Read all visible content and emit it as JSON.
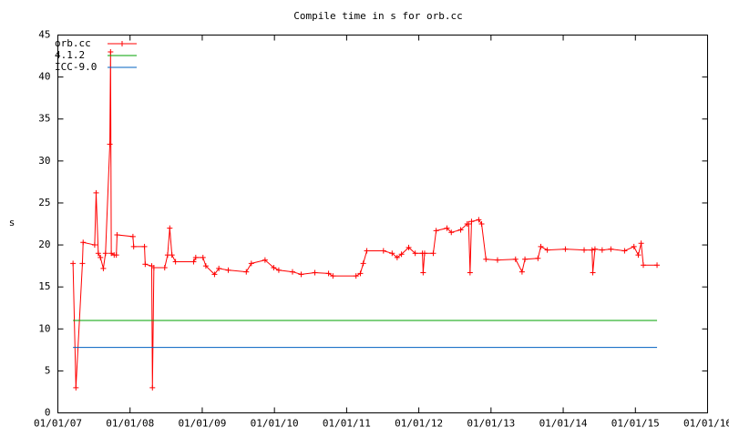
{
  "chart_data": {
    "type": "line",
    "title": "Compile time in s for orb.cc",
    "y_label": "s",
    "xlim": [
      2007,
      2016
    ],
    "xticks": [
      {
        "value": 2007,
        "label": "01/01/07"
      },
      {
        "value": 2008,
        "label": "01/01/08"
      },
      {
        "value": 2009,
        "label": "01/01/09"
      },
      {
        "value": 2010,
        "label": "01/01/10"
      },
      {
        "value": 2011,
        "label": "01/01/11"
      },
      {
        "value": 2012,
        "label": "01/01/12"
      },
      {
        "value": 2013,
        "label": "01/01/13"
      },
      {
        "value": 2014,
        "label": "01/01/14"
      },
      {
        "value": 2015,
        "label": "01/01/15"
      },
      {
        "value": 2016,
        "label": "01/01/16"
      }
    ],
    "ylim": [
      0,
      45
    ],
    "yticks": [
      0,
      5,
      10,
      15,
      20,
      25,
      30,
      35,
      40,
      45
    ],
    "legend": "top-left",
    "series": [
      {
        "name": "orb.cc",
        "color": "#ff0000",
        "marker": "plus",
        "x": [
          2007.21,
          2007.25,
          2007.34,
          2007.35,
          2007.51,
          2007.53,
          2007.56,
          2007.59,
          2007.63,
          2007.66,
          2007.72,
          2007.73,
          2007.74,
          2007.78,
          2007.81,
          2007.82,
          2008.04,
          2008.05,
          2008.2,
          2008.21,
          2008.3,
          2008.31,
          2008.33,
          2008.48,
          2008.52,
          2008.55,
          2008.58,
          2008.63,
          2008.88,
          2008.91,
          2009.01,
          2009.05,
          2009.17,
          2009.23,
          2009.36,
          2009.61,
          2009.68,
          2009.87,
          2009.99,
          2010.06,
          2010.25,
          2010.37,
          2010.56,
          2010.75,
          2010.81,
          2011.13,
          2011.19,
          2011.23,
          2011.28,
          2011.51,
          2011.63,
          2011.7,
          2011.76,
          2011.86,
          2011.95,
          2012.05,
          2012.06,
          2012.08,
          2012.2,
          2012.24,
          2012.39,
          2012.45,
          2012.58,
          2012.67,
          2012.69,
          2012.71,
          2012.73,
          2012.83,
          2012.87,
          2012.93,
          2013.09,
          2013.34,
          2013.43,
          2013.47,
          2013.65,
          2013.69,
          2013.78,
          2014.03,
          2014.29,
          2014.4,
          2014.41,
          2014.44,
          2014.54,
          2014.66,
          2014.85,
          2014.98,
          2015.04,
          2015.08,
          2015.11,
          2015.3
        ],
        "values": [
          17.8,
          3,
          17.8,
          20.3,
          20,
          26.2,
          19,
          18.5,
          17.2,
          19,
          32,
          43,
          19,
          18.8,
          18.8,
          21.2,
          21,
          19.8,
          19.8,
          17.7,
          17.5,
          3,
          17.3,
          17.3,
          18.8,
          22,
          18.8,
          18,
          18,
          18.5,
          18.5,
          17.5,
          16.5,
          17.2,
          17,
          16.8,
          17.8,
          18.2,
          17.3,
          17,
          16.8,
          16.5,
          16.7,
          16.6,
          16.3,
          16.3,
          16.6,
          17.8,
          19.3,
          19.3,
          19,
          18.5,
          18.9,
          19.7,
          19,
          19,
          16.7,
          19,
          19,
          21.7,
          22,
          21.5,
          21.8,
          22.5,
          22.5,
          16.7,
          22.8,
          23,
          22.5,
          18.3,
          18.2,
          18.3,
          16.8,
          18.3,
          18.4,
          19.8,
          19.4,
          19.5,
          19.4,
          19.4,
          16.7,
          19.5,
          19.4,
          19.5,
          19.3,
          19.8,
          18.8,
          20.2,
          17.6,
          17.6
        ]
      },
      {
        "name": "4.1.2",
        "color": "#00a000",
        "x": [
          2007.21,
          2015.3
        ],
        "values": [
          11,
          11
        ]
      },
      {
        "name": "ICC-9.0",
        "color": "#0060c0",
        "x": [
          2007.21,
          2015.3
        ],
        "values": [
          7.8,
          7.8
        ]
      }
    ]
  }
}
